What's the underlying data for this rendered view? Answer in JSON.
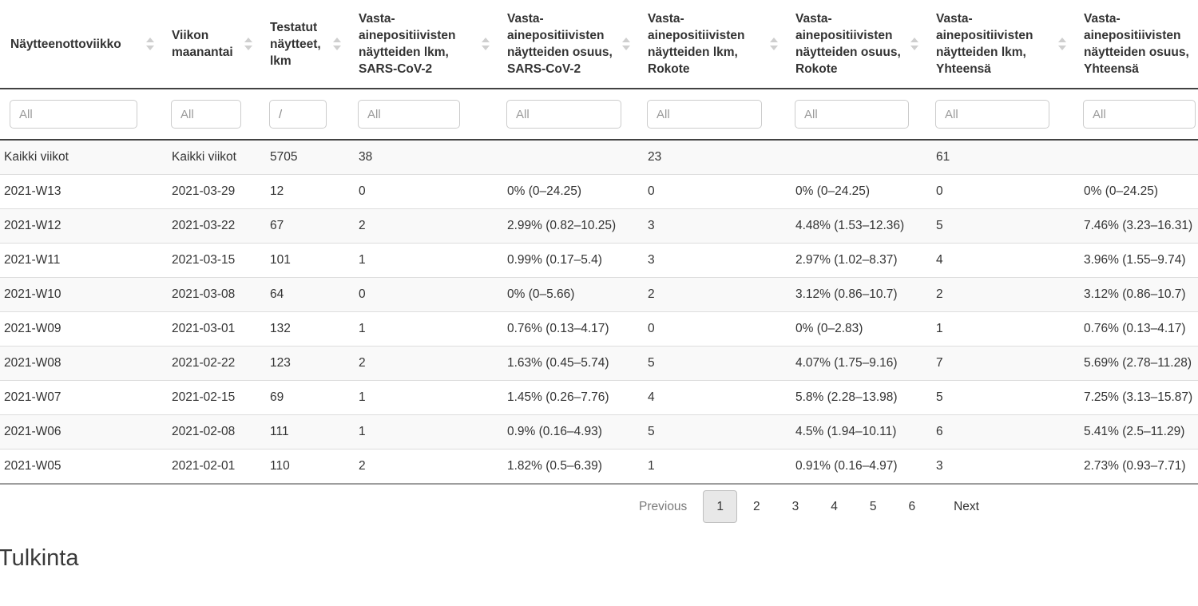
{
  "table": {
    "columns": [
      "Näytteenottoviikko",
      "Viikon maanantai",
      "Testatut näytteet, lkm",
      "Vasta-ainepositiivisten näytteiden lkm, SARS-CoV-2",
      "Vasta-ainepositiivisten näytteiden osuus, SARS-CoV-2",
      "Vasta-ainepositiivisten näytteiden lkm, Rokote",
      "Vasta-ainepositiivisten näytteiden osuus, Rokote",
      "Vasta-ainepositiivisten näytteiden lkm, Yhteensä",
      "Vasta-ainepositiivisten näytteiden osuus, Yhteensä"
    ],
    "filters": [
      {
        "placeholder": "All",
        "value": ""
      },
      {
        "placeholder": "All",
        "value": ""
      },
      {
        "placeholder": "All",
        "value": "/"
      },
      {
        "placeholder": "All",
        "value": ""
      },
      {
        "placeholder": "All",
        "value": ""
      },
      {
        "placeholder": "All",
        "value": ""
      },
      {
        "placeholder": "All",
        "value": ""
      },
      {
        "placeholder": "All",
        "value": ""
      },
      {
        "placeholder": "All",
        "value": ""
      }
    ],
    "rows": [
      [
        "Kaikki viikot",
        "Kaikki viikot",
        "5705",
        "38",
        "",
        "23",
        "",
        "61",
        ""
      ],
      [
        "2021-W13",
        "2021-03-29",
        "12",
        "0",
        "0% (0–24.25)",
        "0",
        "0% (0–24.25)",
        "0",
        "0% (0–24.25)"
      ],
      [
        "2021-W12",
        "2021-03-22",
        "67",
        "2",
        "2.99% (0.82–10.25)",
        "3",
        "4.48% (1.53–12.36)",
        "5",
        "7.46% (3.23–16.31)"
      ],
      [
        "2021-W11",
        "2021-03-15",
        "101",
        "1",
        "0.99% (0.17–5.4)",
        "3",
        "2.97% (1.02–8.37)",
        "4",
        "3.96% (1.55–9.74)"
      ],
      [
        "2021-W10",
        "2021-03-08",
        "64",
        "0",
        "0% (0–5.66)",
        "2",
        "3.12% (0.86–10.7)",
        "2",
        "3.12% (0.86–10.7)"
      ],
      [
        "2021-W09",
        "2021-03-01",
        "132",
        "1",
        "0.76% (0.13–4.17)",
        "0",
        "0% (0–2.83)",
        "1",
        "0.76% (0.13–4.17)"
      ],
      [
        "2021-W08",
        "2021-02-22",
        "123",
        "2",
        "1.63% (0.45–5.74)",
        "5",
        "4.07% (1.75–9.16)",
        "7",
        "5.69% (2.78–11.28)"
      ],
      [
        "2021-W07",
        "2021-02-15",
        "69",
        "1",
        "1.45% (0.26–7.76)",
        "4",
        "5.8% (2.28–13.98)",
        "5",
        "7.25% (3.13–15.87)"
      ],
      [
        "2021-W06",
        "2021-02-08",
        "111",
        "1",
        "0.9% (0.16–4.93)",
        "5",
        "4.5% (1.94–10.11)",
        "6",
        "5.41% (2.5–11.29)"
      ],
      [
        "2021-W05",
        "2021-02-01",
        "110",
        "2",
        "1.82% (0.5–6.39)",
        "1",
        "0.91% (0.16–4.97)",
        "3",
        "2.73% (0.93–7.71)"
      ]
    ]
  },
  "pagination": {
    "previous": "Previous",
    "pages": [
      "1",
      "2",
      "3",
      "4",
      "5",
      "6"
    ],
    "active_page": "1",
    "next": "Next"
  },
  "section_heading": "Tulkinta",
  "colors": {
    "row_stripe": "#f9f9f9",
    "row_border": "#dddddd",
    "header_border": "#424242",
    "table_bottom_border": "#9e9e9e",
    "active_page_bg": "#e8e8e8",
    "text": "#333333",
    "placeholder": "#9a9a9a"
  }
}
